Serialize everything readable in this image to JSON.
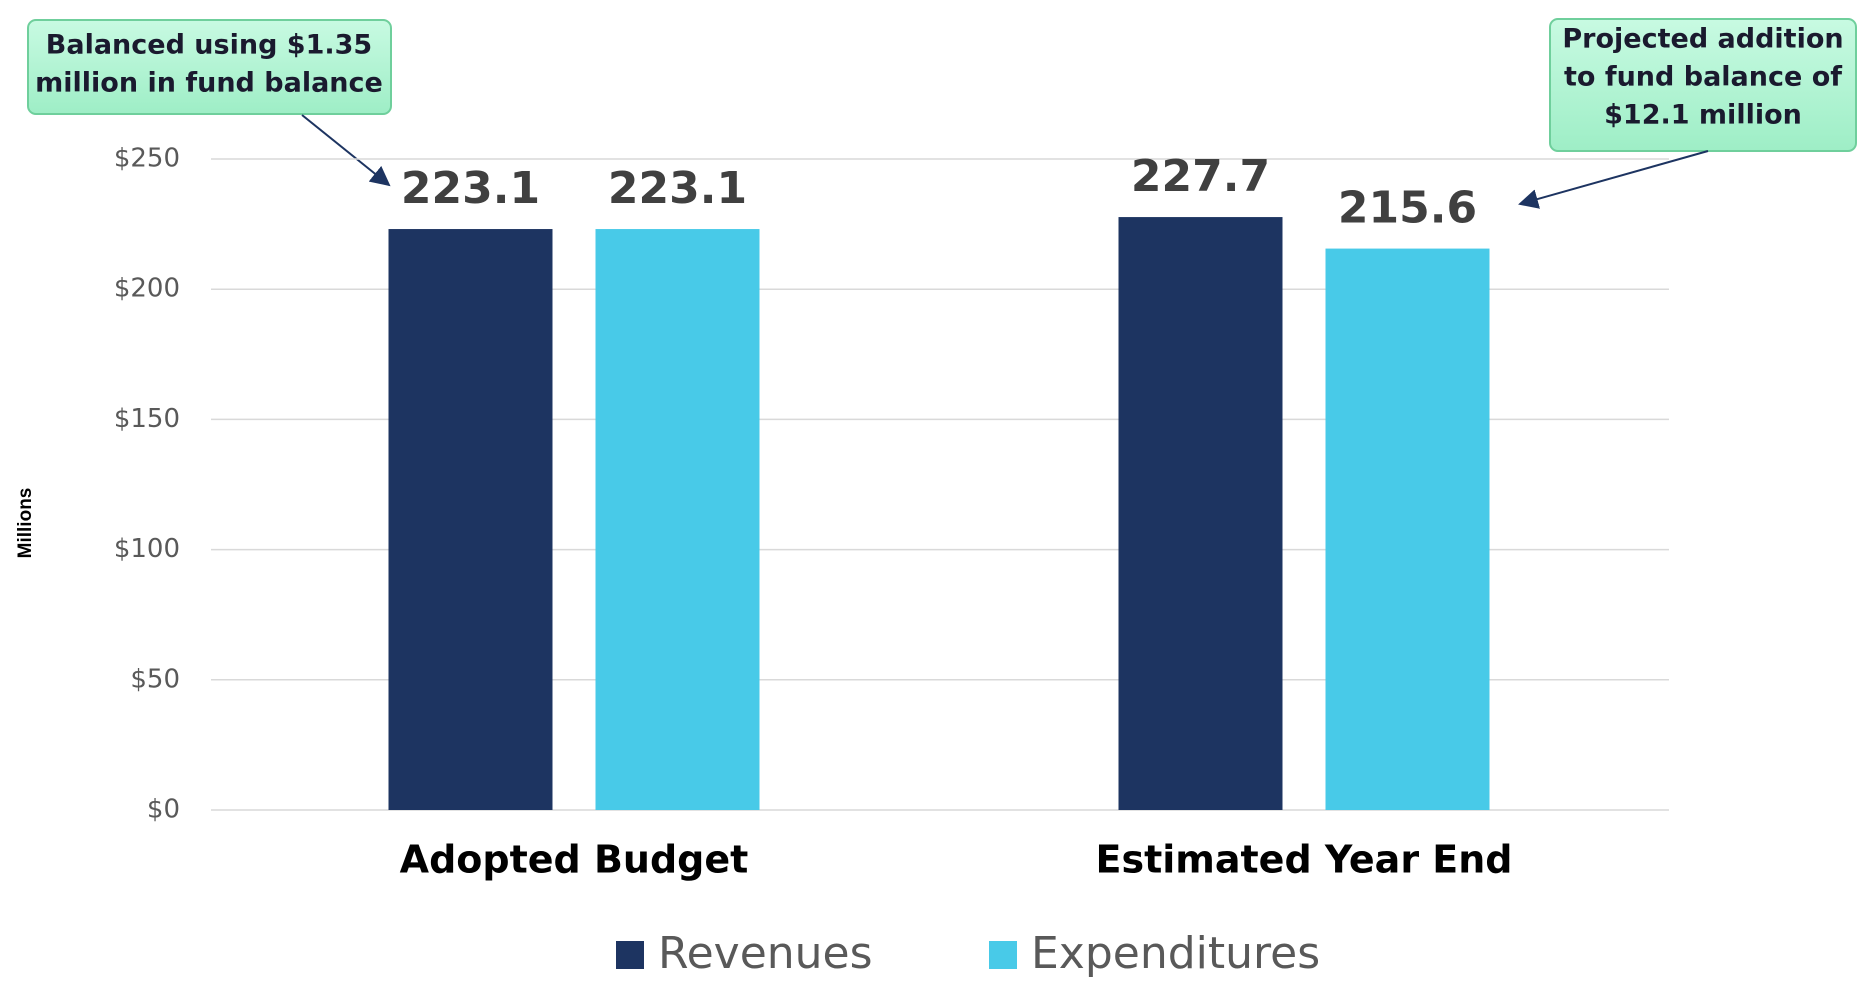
{
  "chart_data": {
    "type": "bar",
    "categories": [
      "Adopted Budget",
      "Estimated Year End"
    ],
    "series": [
      {
        "name": "Revenues",
        "color": "#1d3461",
        "values": [
          223.1,
          227.7
        ]
      },
      {
        "name": "Expenditures",
        "color": "#48cae8",
        "values": [
          223.1,
          215.6
        ]
      }
    ],
    "y_label": "Millions",
    "ylim": [
      0,
      250
    ],
    "yticks": [
      {
        "value": 0,
        "label": "$0"
      },
      {
        "value": 50,
        "label": "$50"
      },
      {
        "value": 100,
        "label": "$100"
      },
      {
        "value": 150,
        "label": "$150"
      },
      {
        "value": 200,
        "label": "$200"
      },
      {
        "value": 250,
        "label": "$250"
      }
    ],
    "grid": true,
    "annotations": [
      {
        "lines": [
          "Balanced using $1.35",
          "million in fund balance"
        ]
      },
      {
        "lines": [
          "Projected addition",
          "to fund balance of",
          "$12.1 million"
        ]
      }
    ]
  }
}
